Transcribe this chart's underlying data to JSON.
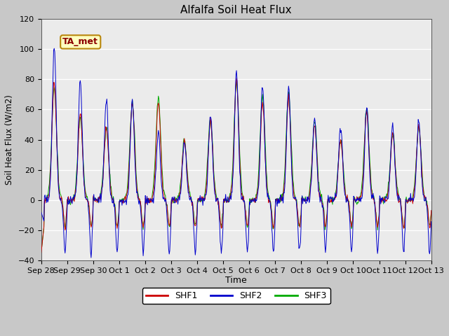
{
  "title": "Alfalfa Soil Heat Flux",
  "ylabel": "Soil Heat Flux (W/m2)",
  "xlabel": "Time",
  "ylim": [
    -40,
    120
  ],
  "background_color": "#ebebeb",
  "grid_color": "white",
  "shf1_color": "#cc0000",
  "shf2_color": "#0000cc",
  "shf3_color": "#00aa00",
  "annotation_text": "TA_met",
  "annotation_color": "#8b0000",
  "annotation_bg": "#ffffc0",
  "annotation_border": "#b8860b",
  "legend_labels": [
    "SHF1",
    "SHF2",
    "SHF3"
  ],
  "tick_labels": [
    "Sep 28",
    "Sep 29",
    "Sep 30",
    "Oct 1",
    "Oct 2",
    "Oct 3",
    "Oct 4",
    "Oct 5",
    "Oct 6",
    "Oct 7",
    "Oct 8",
    "Oct 9",
    "Oct 10",
    "Oct 11",
    "Oct 12",
    "Oct 13"
  ],
  "yticks": [
    -40,
    -20,
    0,
    20,
    40,
    60,
    80,
    100,
    120
  ],
  "days": 15,
  "pts_per_day": 48,
  "day_peaks_shf2": [
    103,
    79,
    68,
    66,
    45,
    39,
    57,
    85,
    77,
    75,
    55,
    50,
    63,
    50,
    52
  ],
  "day_peaks_shf1": [
    78,
    57,
    48,
    65,
    65,
    39,
    53,
    80,
    64,
    68,
    50,
    40,
    59,
    44,
    50
  ],
  "day_peaks_shf3": [
    74,
    55,
    47,
    65,
    67,
    39,
    53,
    78,
    69,
    70,
    52,
    40,
    60,
    44,
    48
  ],
  "night_base": -16,
  "night_deep_shf2": -35,
  "night_deep_shf1": -18,
  "night_deep_shf3": -18,
  "seed": 7
}
